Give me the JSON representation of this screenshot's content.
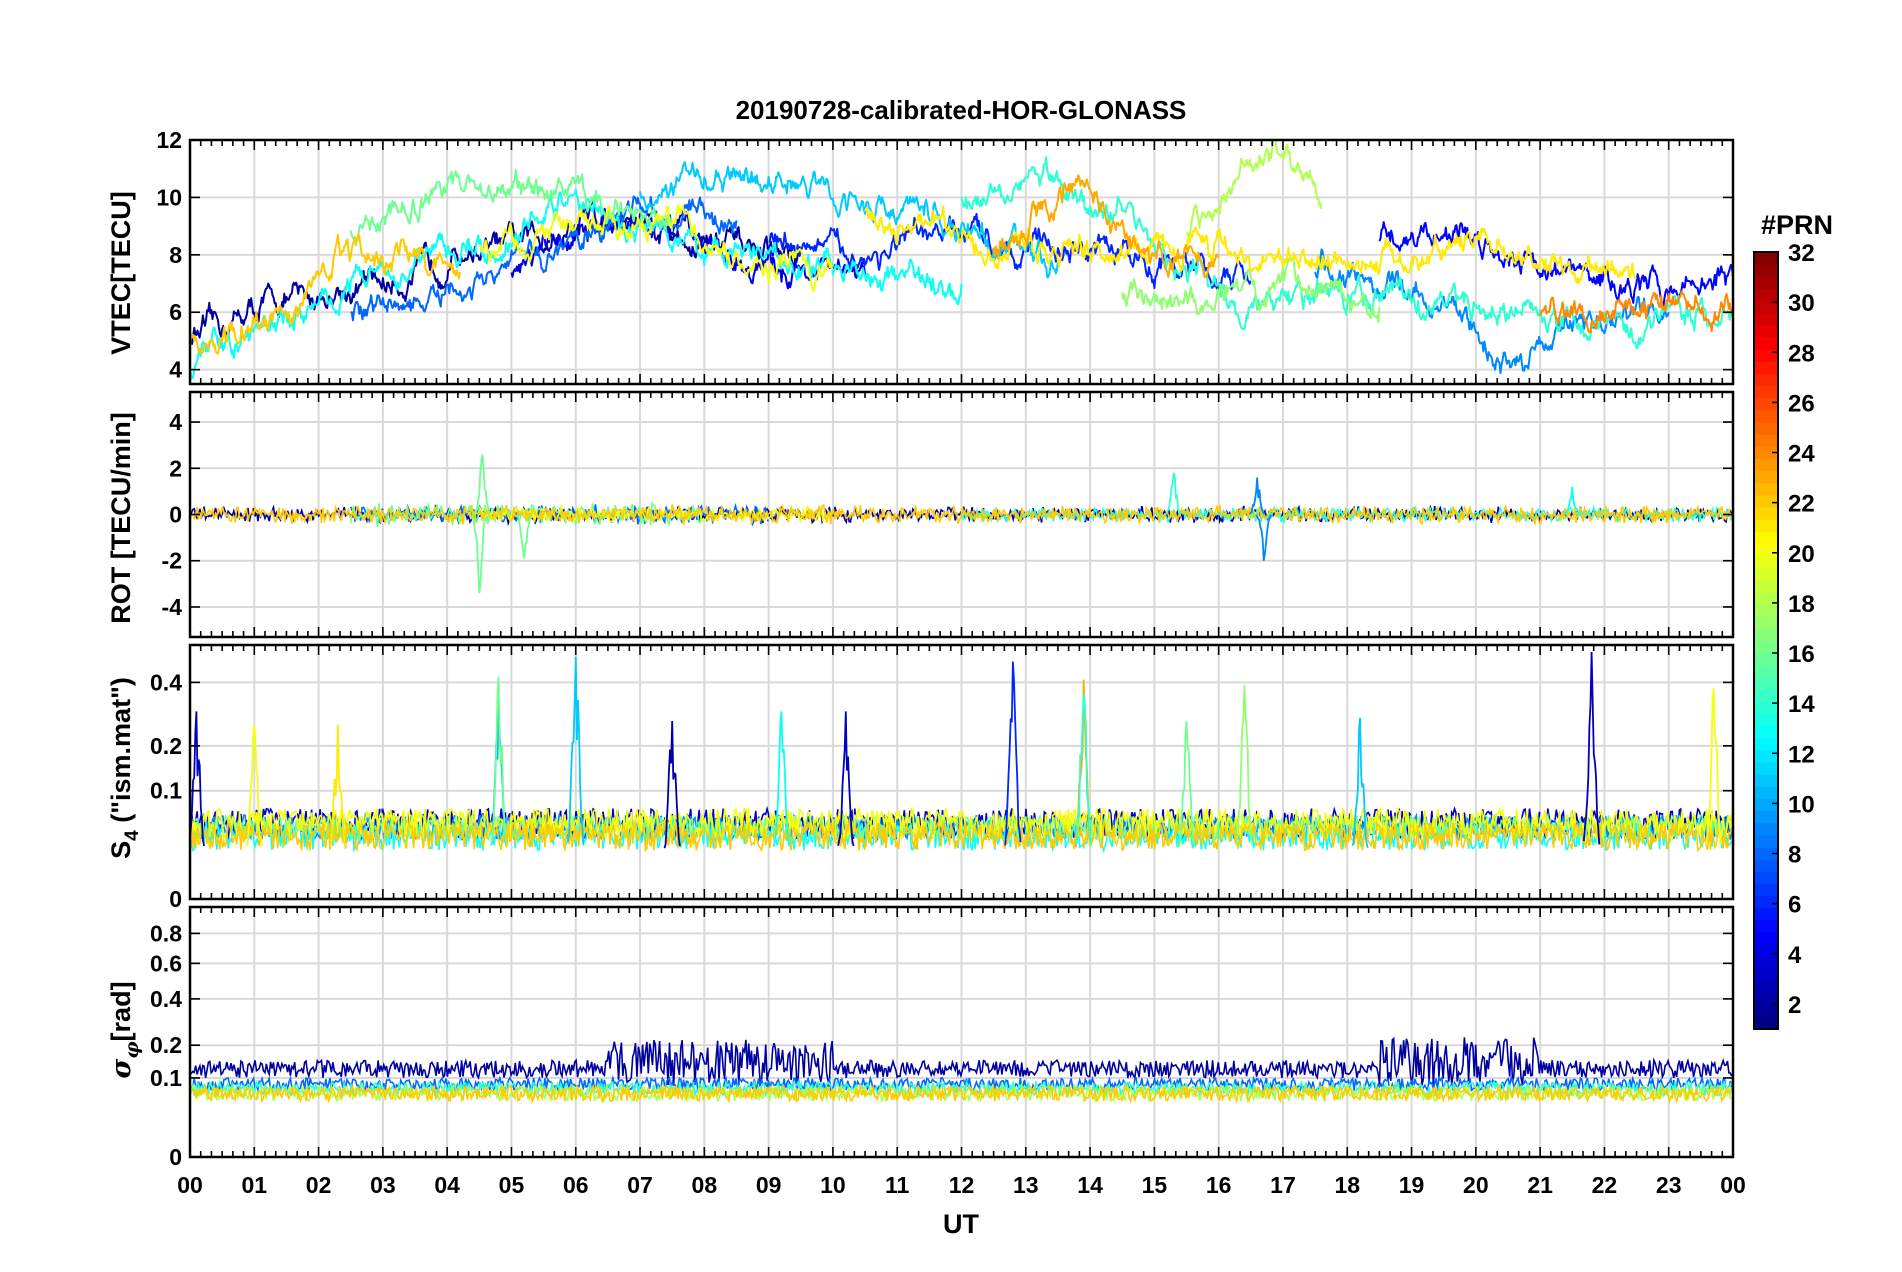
{
  "figure": {
    "title": "20190728-calibrated-HOR-GLONASS",
    "xlabel": "UT",
    "x_ticks": [
      "00",
      "01",
      "02",
      "03",
      "04",
      "05",
      "06",
      "07",
      "08",
      "09",
      "10",
      "11",
      "12",
      "13",
      "14",
      "15",
      "16",
      "17",
      "18",
      "19",
      "20",
      "21",
      "22",
      "23",
      "00"
    ]
  },
  "colorbar": {
    "title": "#PRN",
    "ticks": [
      "2",
      "4",
      "6",
      "8",
      "10",
      "12",
      "14",
      "16",
      "18",
      "20",
      "22",
      "24",
      "26",
      "28",
      "30",
      "32"
    ],
    "range": [
      1,
      32
    ],
    "colormap": "jet"
  },
  "chart_data": [
    {
      "type": "line",
      "panel": "vtec",
      "ylabel": "VTEC[TECU]",
      "xlim": [
        0,
        24
      ],
      "ylim": [
        3.5,
        12
      ],
      "yticks": [
        4,
        6,
        8,
        10,
        12
      ],
      "grid": true,
      "series": [
        {
          "prn": 2,
          "points": [
            [
              0.0,
              5.2
            ],
            [
              1.5,
              6.4
            ],
            [
              3.0,
              7.0
            ],
            [
              4.5,
              8.2
            ],
            [
              6.0,
              8.8
            ],
            [
              7.0,
              9.3
            ],
            [
              8.0,
              8.4
            ],
            [
              9.5,
              8.0
            ]
          ]
        },
        {
          "prn": 4,
          "points": [
            [
              5.0,
              7.5
            ],
            [
              6.5,
              9.5
            ],
            [
              7.5,
              8.8
            ],
            [
              9.0,
              7.5
            ],
            [
              10.5,
              7.3
            ]
          ]
        },
        {
          "prn": 5,
          "points": [
            [
              18.5,
              8.5
            ],
            [
              19.5,
              8.9
            ],
            [
              20.5,
              8.2
            ],
            [
              21.5,
              7.3
            ],
            [
              22.5,
              6.8
            ],
            [
              24.0,
              7.2
            ]
          ]
        },
        {
          "prn": 6,
          "points": [
            [
              9.0,
              8.6
            ],
            [
              10.5,
              8.0
            ],
            [
              12.0,
              8.7
            ],
            [
              13.5,
              8.3
            ],
            [
              15.0,
              7.8
            ],
            [
              16.5,
              7.1
            ]
          ]
        },
        {
          "prn": 8,
          "points": [
            [
              2.5,
              6.0
            ],
            [
              4.0,
              6.4
            ],
            [
              5.5,
              8.0
            ],
            [
              7.0,
              9.6
            ],
            [
              8.5,
              9.2
            ]
          ]
        },
        {
          "prn": 9,
          "points": [
            [
              17.5,
              7.5
            ],
            [
              18.5,
              7.0
            ],
            [
              19.5,
              6.2
            ],
            [
              20.5,
              4.2
            ],
            [
              21.5,
              5.6
            ],
            [
              23.0,
              6.0
            ]
          ]
        },
        {
          "prn": 11,
          "points": [
            [
              7.0,
              10.2
            ],
            [
              8.0,
              10.7
            ],
            [
              9.5,
              10.4
            ],
            [
              11.0,
              9.6
            ],
            [
              12.5,
              8.6
            ],
            [
              13.5,
              7.8
            ]
          ]
        },
        {
          "prn": 13,
          "points": [
            [
              0.0,
              4.2
            ],
            [
              1.5,
              5.8
            ],
            [
              3.0,
              7.5
            ],
            [
              4.5,
              8.2
            ],
            [
              6.0,
              9.8
            ],
            [
              7.0,
              9.0
            ],
            [
              8.5,
              8.0
            ],
            [
              10.0,
              7.5
            ],
            [
              12.0,
              7.0
            ]
          ]
        },
        {
          "prn": 14,
          "points": [
            [
              12.0,
              10.0
            ],
            [
              13.0,
              10.8
            ],
            [
              14.5,
              9.5
            ],
            [
              15.5,
              7.5
            ],
            [
              16.5,
              6.0
            ],
            [
              18.0,
              6.6
            ],
            [
              20.0,
              6.2
            ],
            [
              22.0,
              5.6
            ],
            [
              24.0,
              6.2
            ]
          ]
        },
        {
          "prn": 16,
          "points": [
            [
              2.5,
              9.0
            ],
            [
              4.0,
              10.2
            ],
            [
              5.5,
              10.3
            ],
            [
              6.5,
              9.8
            ],
            [
              7.5,
              8.8
            ]
          ]
        },
        {
          "prn": 17,
          "points": [
            [
              14.5,
              6.6
            ],
            [
              15.5,
              6.4
            ],
            [
              16.5,
              6.6
            ],
            [
              17.5,
              7.2
            ],
            [
              18.5,
              6.2
            ]
          ]
        },
        {
          "prn": 18,
          "points": [
            [
              15.5,
              9.0
            ],
            [
              16.5,
              10.8
            ],
            [
              17.0,
              11.7
            ],
            [
              17.6,
              9.6
            ]
          ]
        },
        {
          "prn": 20,
          "points": [
            [
              4.5,
              8.3
            ],
            [
              6.0,
              9.0
            ],
            [
              7.5,
              9.1
            ],
            [
              9.0,
              7.6
            ],
            [
              10.0,
              7.5
            ]
          ]
        },
        {
          "prn": 21,
          "points": [
            [
              10.5,
              9.3
            ],
            [
              11.5,
              9.0
            ],
            [
              12.5,
              8.4
            ],
            [
              14.0,
              8.1
            ],
            [
              15.5,
              8.3
            ],
            [
              17.0,
              8.0
            ],
            [
              19.0,
              7.8
            ],
            [
              20.0,
              8.4
            ],
            [
              21.5,
              7.7
            ],
            [
              22.5,
              7.2
            ]
          ]
        },
        {
          "prn": 22,
          "points": [
            [
              0.0,
              5.0
            ],
            [
              1.5,
              6.0
            ],
            [
              2.5,
              7.8
            ],
            [
              3.5,
              8.1
            ],
            [
              4.2,
              7.4
            ]
          ]
        },
        {
          "prn": 23,
          "points": [
            [
              12.5,
              8.3
            ],
            [
              13.5,
              10.0
            ],
            [
              14.0,
              10.5
            ],
            [
              14.5,
              8.8
            ],
            [
              15.0,
              7.8
            ],
            [
              16.0,
              7.9
            ]
          ]
        },
        {
          "prn": 24,
          "points": [
            [
              21.0,
              6.0
            ],
            [
              22.5,
              6.2
            ],
            [
              23.5,
              6.5
            ],
            [
              24.0,
              6.0
            ]
          ]
        }
      ]
    },
    {
      "type": "line",
      "panel": "rot",
      "ylabel": "ROT [TECU/min]",
      "xlim": [
        0,
        24
      ],
      "ylim": [
        -5.3,
        5.3
      ],
      "yticks": [
        -4,
        -2,
        0,
        2,
        4
      ],
      "grid": true,
      "series": [
        {
          "prn": 2,
          "spans": [
            [
              0.0,
              24.0
            ]
          ],
          "amplitude": 0.3
        },
        {
          "prn": 8,
          "spans": [
            [
              2.5,
              9.0
            ]
          ],
          "amplitude": 0.35
        },
        {
          "prn": 14,
          "spans": [
            [
              12.0,
              24.0
            ]
          ],
          "amplitude": 0.3
        },
        {
          "prn": 16,
          "spans": [
            [
              2.5,
              8.0
            ]
          ],
          "amplitude": 0.45
        },
        {
          "prn": 20,
          "spans": [
            [
              4.5,
              10.0
            ]
          ],
          "amplitude": 0.3
        },
        {
          "prn": 22,
          "spans": [
            [
              0.0,
              24.0
            ]
          ],
          "amplitude": 0.35
        }
      ],
      "spikes": [
        {
          "prn": 16,
          "x": 4.5,
          "y": -3.4
        },
        {
          "prn": 16,
          "x": 4.55,
          "y": 2.6
        },
        {
          "prn": 16,
          "x": 5.2,
          "y": -1.9
        },
        {
          "prn": 14,
          "x": 15.3,
          "y": 1.8
        },
        {
          "prn": 9,
          "x": 16.6,
          "y": 1.6
        },
        {
          "prn": 9,
          "x": 16.7,
          "y": -2.0
        },
        {
          "prn": 13,
          "x": 21.5,
          "y": 1.2
        }
      ]
    },
    {
      "type": "line",
      "panel": "s4",
      "ylabel": "S4 (\"ism.mat\")",
      "xlim": [
        0,
        24
      ],
      "ylim": [
        0,
        0.55
      ],
      "yticks": [
        0,
        0.1,
        0.2,
        0.4
      ],
      "y_scale": "sqrt",
      "grid": true,
      "series": [
        {
          "prn": 3,
          "spans": [
            [
              0.0,
              24.0
            ]
          ],
          "baseline": 0.03,
          "amplitude": 0.04
        },
        {
          "prn": 9,
          "spans": [
            [
              0.0,
              24.0
            ]
          ],
          "baseline": 0.03,
          "amplitude": 0.03
        },
        {
          "prn": 13,
          "spans": [
            [
              0.0,
              24.0
            ]
          ],
          "baseline": 0.02,
          "amplitude": 0.03
        },
        {
          "prn": 16,
          "spans": [
            [
              0.0,
              24.0
            ]
          ],
          "baseline": 0.03,
          "amplitude": 0.03
        },
        {
          "prn": 20,
          "spans": [
            [
              0.0,
              24.0
            ]
          ],
          "baseline": 0.03,
          "amplitude": 0.04
        },
        {
          "prn": 22,
          "spans": [
            [
              0.0,
              24.0
            ]
          ],
          "baseline": 0.02,
          "amplitude": 0.03
        }
      ],
      "spikes": [
        {
          "prn": 3,
          "x": 0.1,
          "y": 0.3
        },
        {
          "prn": 20,
          "x": 1.0,
          "y": 0.26
        },
        {
          "prn": 21,
          "x": 2.3,
          "y": 0.26
        },
        {
          "prn": 10,
          "x": 4.8,
          "y": 0.31
        },
        {
          "prn": 16,
          "x": 4.8,
          "y": 0.42
        },
        {
          "prn": 11,
          "x": 6.0,
          "y": 0.5
        },
        {
          "prn": 2,
          "x": 7.5,
          "y": 0.27
        },
        {
          "prn": 13,
          "x": 9.2,
          "y": 0.3
        },
        {
          "prn": 3,
          "x": 10.2,
          "y": 0.3
        },
        {
          "prn": 6,
          "x": 12.8,
          "y": 0.48
        },
        {
          "prn": 23,
          "x": 13.9,
          "y": 0.41
        },
        {
          "prn": 14,
          "x": 13.9,
          "y": 0.36
        },
        {
          "prn": 16,
          "x": 15.5,
          "y": 0.27
        },
        {
          "prn": 17,
          "x": 16.4,
          "y": 0.39
        },
        {
          "prn": 11,
          "x": 18.2,
          "y": 0.28
        },
        {
          "prn": 3,
          "x": 21.8,
          "y": 0.52
        },
        {
          "prn": 20,
          "x": 23.7,
          "y": 0.38
        }
      ]
    },
    {
      "type": "line",
      "panel": "sigma_phi",
      "ylabel": "σφ[rad]",
      "xlim": [
        0,
        24
      ],
      "ylim": [
        0,
        1.0
      ],
      "yticks": [
        0,
        0.1,
        0.2,
        0.4,
        0.6,
        0.8
      ],
      "y_scale": "sqrt",
      "grid": true,
      "series": [
        {
          "prn": 2,
          "spans": [
            [
              0.0,
              24.0
            ]
          ],
          "baseline": 0.1,
          "amplitude": 0.05
        },
        {
          "prn": 8,
          "spans": [
            [
              0.0,
              24.0
            ]
          ],
          "baseline": 0.07,
          "amplitude": 0.03
        },
        {
          "prn": 14,
          "spans": [
            [
              0.0,
              24.0
            ]
          ],
          "baseline": 0.06,
          "amplitude": 0.03
        },
        {
          "prn": 18,
          "spans": [
            [
              0.0,
              24.0
            ]
          ],
          "baseline": 0.05,
          "amplitude": 0.03
        },
        {
          "prn": 22,
          "spans": [
            [
              0.0,
              24.0
            ]
          ],
          "baseline": 0.05,
          "amplitude": 0.03
        }
      ],
      "bursts": [
        {
          "prn": 2,
          "from": 6.5,
          "to": 10.0,
          "peak": 0.22
        },
        {
          "prn": 2,
          "from": 18.5,
          "to": 21.0,
          "peak": 0.23
        }
      ]
    }
  ]
}
